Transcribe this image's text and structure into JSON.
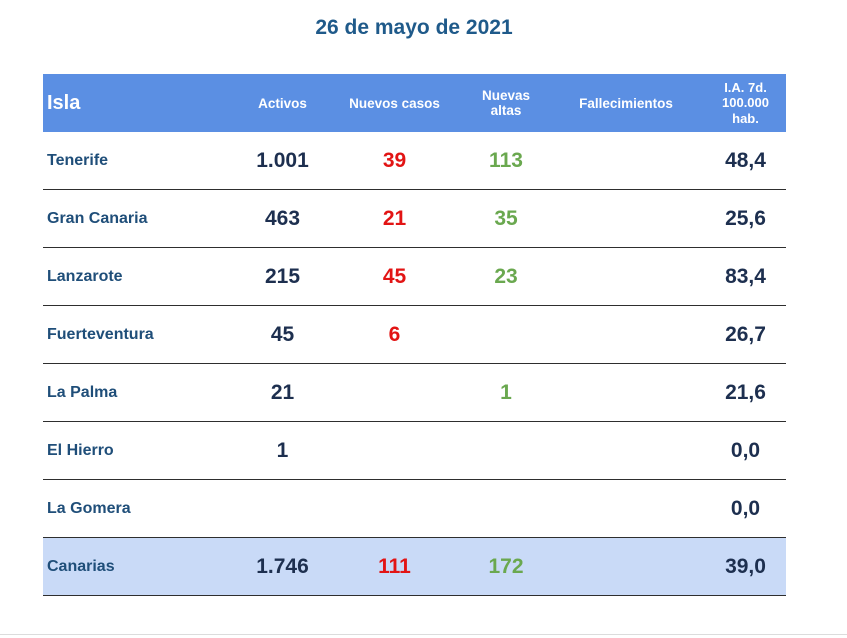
{
  "title": "26 de mayo de 2021",
  "headers": {
    "isla": "Isla",
    "activos": "Activos",
    "nuevos": "Nuevos casos",
    "altas": "Nuevas altas",
    "fallecimientos": "Fallecimientos",
    "ia_line1": "I.A. 7d.",
    "ia_line2": "100.000",
    "ia_line3": "hab."
  },
  "rows": [
    {
      "isla": "Tenerife",
      "activos": "1.001",
      "nuevos": "39",
      "altas": "113",
      "fallecimientos": "",
      "ia": "48,4"
    },
    {
      "isla": "Gran Canaria",
      "activos": "463",
      "nuevos": "21",
      "altas": "35",
      "fallecimientos": "",
      "ia": "25,6"
    },
    {
      "isla": "Lanzarote",
      "activos": "215",
      "nuevos": "45",
      "altas": "23",
      "fallecimientos": "",
      "ia": "83,4"
    },
    {
      "isla": "Fuerteventura",
      "activos": "45",
      "nuevos": "6",
      "altas": "",
      "fallecimientos": "",
      "ia": "26,7"
    },
    {
      "isla": "La Palma",
      "activos": "21",
      "nuevos": "",
      "altas": "1",
      "fallecimientos": "",
      "ia": "21,6"
    },
    {
      "isla": "El Hierro",
      "activos": "1",
      "nuevos": "",
      "altas": "",
      "fallecimientos": "",
      "ia": "0,0"
    },
    {
      "isla": "La Gomera",
      "activos": "",
      "nuevos": "",
      "altas": "",
      "fallecimientos": "",
      "ia": "0,0"
    }
  ],
  "total": {
    "isla": "Canarias",
    "activos": "1.746",
    "nuevos": "111",
    "altas": "172",
    "fallecimientos": "",
    "ia": "39,0"
  },
  "colors": {
    "header_bg": "#5b8fe3",
    "total_bg": "#c9daf7",
    "title": "#1f5a8a",
    "nuevos": "#e21414",
    "altas": "#6aa84f"
  }
}
